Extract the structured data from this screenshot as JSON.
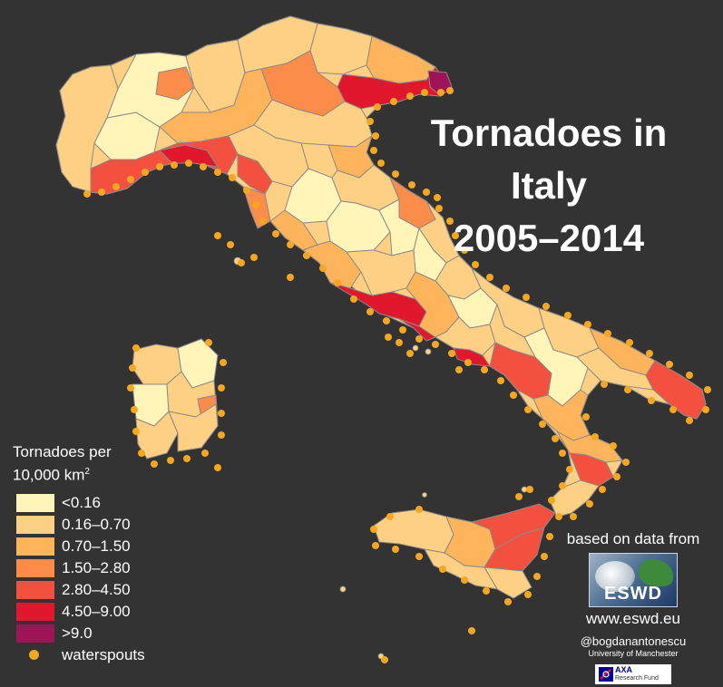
{
  "title": {
    "line1": "Tornadoes in Italy",
    "line2": "2005–2014"
  },
  "legend": {
    "title_line1": "Tornadoes per",
    "title_line2": "10,000 km",
    "title_superscript": "2",
    "classes": [
      {
        "label": "<0.16",
        "color": "#fff5b8"
      },
      {
        "label": "0.16–0.70",
        "color": "#fdd083"
      },
      {
        "label": "0.70–1.50",
        "color": "#fdb45b"
      },
      {
        "label": "1.50–2.80",
        "color": "#fb8c49"
      },
      {
        "label": "2.80–4.50",
        "color": "#f4503f"
      },
      {
        "label": "4.50–9.00",
        "color": "#e0172d"
      },
      {
        "label": ">9.0",
        "color": "#9e1457"
      }
    ],
    "waterspouts": {
      "label": "waterspouts",
      "color": "#f5a81f"
    }
  },
  "credit": {
    "based_on": "based on data from",
    "logo_text": "ESWD",
    "url": "www.eswd.eu",
    "handle": "@bogdanantonescu",
    "affiliation": "University of Manchester",
    "sponsor_name": "AXA",
    "sponsor_sub": "Research Fund"
  },
  "colors": {
    "background": "#333333",
    "border": "#8a8a8a"
  }
}
